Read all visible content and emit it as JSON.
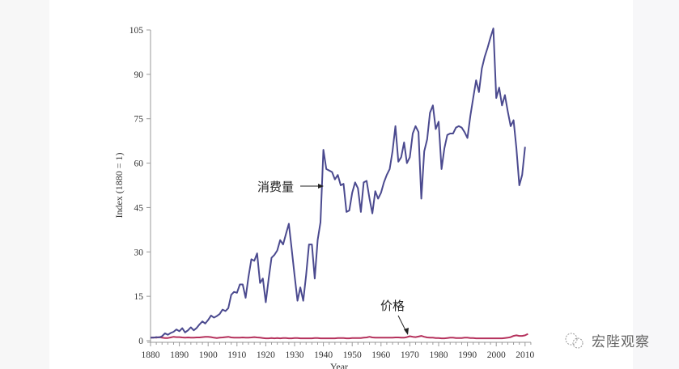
{
  "chart_data": {
    "type": "line",
    "title": "",
    "xlabel": "Year",
    "ylabel": "Index (1880 = 1)",
    "xlim": [
      1880,
      2012
    ],
    "ylim": [
      0,
      105
    ],
    "x_ticks": [
      1880,
      1890,
      1900,
      1910,
      1920,
      1930,
      1940,
      1950,
      1960,
      1970,
      1980,
      1990,
      2000,
      2010
    ],
    "y_ticks": [
      0,
      15,
      30,
      45,
      60,
      75,
      90,
      105
    ],
    "grid": false,
    "legend": "none (inline annotations)",
    "annotations": [
      {
        "text": "消费量",
        "target_series": "消费量",
        "arrow": "right",
        "at_year": 1940,
        "at_value": 53
      },
      {
        "text": "价格",
        "target_series": "价格",
        "arrow": "down-right",
        "at_year": 1970,
        "at_value": 1.5
      }
    ],
    "x": [
      1880,
      1881,
      1882,
      1883,
      1884,
      1885,
      1886,
      1887,
      1888,
      1889,
      1890,
      1891,
      1892,
      1893,
      1894,
      1895,
      1896,
      1897,
      1898,
      1899,
      1900,
      1901,
      1902,
      1903,
      1904,
      1905,
      1906,
      1907,
      1908,
      1909,
      1910,
      1911,
      1912,
      1913,
      1914,
      1915,
      1916,
      1917,
      1918,
      1919,
      1920,
      1921,
      1922,
      1923,
      1924,
      1925,
      1926,
      1927,
      1928,
      1929,
      1930,
      1931,
      1932,
      1933,
      1934,
      1935,
      1936,
      1937,
      1938,
      1939,
      1940,
      1941,
      1942,
      1943,
      1944,
      1945,
      1946,
      1947,
      1948,
      1949,
      1950,
      1951,
      1952,
      1953,
      1954,
      1955,
      1956,
      1957,
      1958,
      1959,
      1960,
      1961,
      1962,
      1963,
      1964,
      1965,
      1966,
      1967,
      1968,
      1969,
      1970,
      1971,
      1972,
      1973,
      1974,
      1975,
      1976,
      1977,
      1978,
      1979,
      1980,
      1981,
      1982,
      1983,
      1984,
      1985,
      1986,
      1987,
      1988,
      1989,
      1990,
      1991,
      1992,
      1993,
      1994,
      1995,
      1996,
      1997,
      1998,
      1999,
      2000,
      2001,
      2002,
      2003,
      2004,
      2005,
      2006,
      2007,
      2008,
      2009,
      2010,
      2011
    ],
    "series": [
      {
        "name": "消费量",
        "color": "#4b4a8f",
        "values": [
          1,
          1,
          1.2,
          1.1,
          1.5,
          2.5,
          2,
          2.6,
          3,
          3.8,
          3.2,
          4.2,
          2.8,
          3.5,
          4.5,
          3.5,
          4.3,
          5.5,
          6.5,
          5.8,
          7,
          8.5,
          7.8,
          8.3,
          9,
          10.5,
          10,
          11,
          15.5,
          16.5,
          16.2,
          19,
          19,
          14.5,
          21.5,
          27.5,
          27,
          29.5,
          19.5,
          21,
          13,
          21,
          28,
          29,
          30.5,
          34,
          32.5,
          36,
          39.5,
          31,
          22,
          13.5,
          18,
          13.5,
          22,
          32.5,
          32.5,
          21,
          34,
          40,
          64.5,
          58,
          57.5,
          57,
          54.5,
          56,
          52.5,
          53,
          43.5,
          44,
          50,
          53.5,
          51.5,
          43.5,
          53.5,
          54,
          48,
          43,
          50.5,
          48,
          50,
          53.5,
          56,
          58,
          64,
          72.5,
          60.5,
          62,
          67,
          60,
          62,
          70,
          72.5,
          70.5,
          48,
          64,
          68,
          77,
          79.5,
          71.5,
          74,
          58,
          65,
          69.5,
          70,
          70,
          72,
          72.5,
          72,
          70.5,
          68.5,
          76,
          82,
          88,
          84,
          92,
          96,
          99,
          102.5,
          105.5,
          82,
          85.5,
          79.5,
          83,
          77.5,
          72.5,
          74.5,
          65,
          52.5,
          56,
          65.5
        ]
      },
      {
        "name": "价格",
        "color": "#b5315c",
        "values": [
          1,
          1.1,
          1.0,
          1.2,
          1.0,
          0.9,
          0.9,
          1.1,
          1.3,
          1.2,
          1.2,
          1.1,
          1.0,
          1.1,
          1.0,
          1.0,
          1.1,
          1.1,
          1.2,
          1.3,
          1.3,
          1.2,
          1.0,
          0.9,
          1.0,
          1.1,
          1.2,
          1.3,
          1.1,
          1.0,
          1.0,
          1.0,
          1.1,
          1.0,
          1.0,
          1.1,
          1.2,
          1.1,
          1.0,
          0.9,
          0.8,
          0.8,
          0.9,
          0.8,
          0.9,
          0.8,
          0.9,
          0.9,
          0.8,
          0.8,
          0.9,
          0.9,
          0.8,
          0.8,
          0.8,
          0.8,
          0.8,
          0.9,
          0.9,
          0.8,
          0.8,
          0.8,
          0.8,
          0.8,
          0.8,
          0.9,
          0.9,
          0.9,
          0.8,
          0.8,
          0.9,
          0.9,
          0.9,
          0.9,
          1.0,
          1.1,
          1.3,
          1.1,
          1.0,
          1.0,
          1.0,
          1.0,
          1.0,
          1.0,
          1.0,
          1.1,
          1.1,
          1.0,
          1.0,
          1.2,
          1.5,
          1.3,
          1.2,
          1.4,
          1.6,
          1.3,
          1.1,
          1.0,
          1.0,
          0.9,
          0.9,
          0.8,
          0.8,
          0.9,
          1.0,
          1.0,
          0.9,
          0.9,
          0.9,
          1.0,
          1.0,
          0.9,
          0.9,
          0.8,
          0.8,
          0.8,
          0.8,
          0.8,
          0.8,
          0.8,
          0.8,
          0.8,
          0.8,
          0.9,
          1.0,
          1.2,
          1.6,
          1.8,
          1.6,
          1.6,
          1.8,
          2.3
        ]
      }
    ]
  },
  "annotations": {
    "consumption_label": "消费量",
    "price_label": "价格"
  },
  "axes": {
    "x_title": "Year",
    "y_title": "Index (1880 = 1)"
  },
  "watermark": {
    "text": "宏陛观察"
  }
}
